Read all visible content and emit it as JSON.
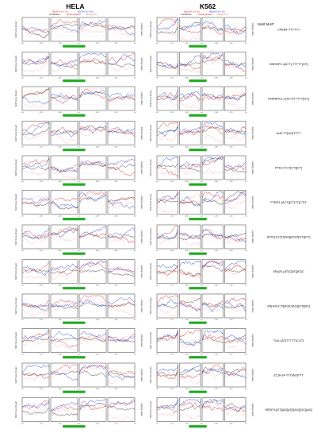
{
  "figure": {
    "columns": [
      "HELA",
      "K562"
    ],
    "legend_row1": [
      "dEpSI>0 (n = 10)",
      "dEpSI<0 (n = 10)"
    ],
    "legend_row2": [
      "Constitutive",
      "Downregulated",
      "Background"
    ],
    "motif_map_header": "Motif MAP:",
    "y_axis_left": "Motif Score (mean)",
    "y_axis_right": "-log10(p-value)",
    "x_ticks": [
      "-50",
      "-125",
      "-250",
      "-50",
      "-250",
      "-125",
      "-50"
    ]
  },
  "colors": {
    "up": "#d62728",
    "down": "#1f3fd6",
    "constitutive": "#111111",
    "background": "#f4a6b0",
    "exon_block": "#22aa22"
  },
  "chart_data": [
    {
      "type": "line",
      "cell": "HELA",
      "motif": "",
      "series": [
        {
          "name": "up"
        },
        {
          "name": "down"
        },
        {
          "name": "constitutive"
        },
        {
          "name": "background"
        }
      ]
    },
    {
      "type": "line",
      "cell": "K562",
      "motif": "CPEB4-TTTTTT",
      "series": [
        {
          "name": "up"
        },
        {
          "name": "down"
        },
        {
          "name": "constitutive"
        },
        {
          "name": "background"
        }
      ]
    },
    {
      "type": "line",
      "cell": "HELA",
      "motif": "",
      "series": [
        {
          "name": "up"
        },
        {
          "name": "down"
        },
        {
          "name": "constitutive"
        },
        {
          "name": "background"
        }
      ]
    },
    {
      "type": "line",
      "cell": "K562",
      "motif": "HNRNPC-[ACT]-TTTTT[GT]",
      "series": [
        {
          "name": "up"
        },
        {
          "name": "down"
        },
        {
          "name": "constitutive"
        },
        {
          "name": "background"
        }
      ]
    },
    {
      "type": "line",
      "cell": "HELA",
      "motif": "",
      "series": [
        {
          "name": "up"
        },
        {
          "name": "down"
        },
        {
          "name": "constitutive"
        },
        {
          "name": "background"
        }
      ]
    },
    {
      "type": "line",
      "cell": "K562",
      "motif": "HNRNPCL1-[ACT]TTTTT[GT]",
      "series": [
        {
          "name": "up"
        },
        {
          "name": "down"
        },
        {
          "name": "constitutive"
        },
        {
          "name": "background"
        }
      ]
    },
    {
      "type": "line",
      "cell": "HELA",
      "motif": "",
      "series": [
        {
          "name": "up"
        },
        {
          "name": "down"
        },
        {
          "name": "constitutive"
        },
        {
          "name": "background"
        }
      ]
    },
    {
      "type": "line",
      "cell": "K562",
      "motif": "HuR-TT[AG]TTTT",
      "series": [
        {
          "name": "up"
        },
        {
          "name": "down"
        },
        {
          "name": "constitutive"
        },
        {
          "name": "background"
        }
      ]
    },
    {
      "type": "line",
      "cell": "HELA",
      "motif": "",
      "series": [
        {
          "name": "up"
        },
        {
          "name": "down"
        },
        {
          "name": "constitutive"
        },
        {
          "name": "background"
        }
      ]
    },
    {
      "type": "line",
      "cell": "K562",
      "motif": "PTB-CTCT[CT][CT]",
      "series": [
        {
          "name": "up"
        },
        {
          "name": "down"
        },
        {
          "name": "constitutive"
        },
        {
          "name": "background"
        }
      ]
    },
    {
      "type": "line",
      "cell": "HELA",
      "motif": "",
      "series": [
        {
          "name": "up"
        },
        {
          "name": "down"
        },
        {
          "name": "constitutive"
        },
        {
          "name": "background"
        }
      ]
    },
    {
      "type": "line",
      "cell": "K562",
      "motif": "PTBP1-[ACT][CT]TT[CT]T",
      "series": [
        {
          "name": "up"
        },
        {
          "name": "down"
        },
        {
          "name": "constitutive"
        },
        {
          "name": "background"
        }
      ]
    },
    {
      "type": "line",
      "cell": "HELA",
      "motif": "",
      "series": [
        {
          "name": "up"
        },
        {
          "name": "down"
        },
        {
          "name": "constitutive"
        },
        {
          "name": "background"
        }
      ]
    },
    {
      "type": "line",
      "cell": "K562",
      "motif": "SFPQ-[GT]T[AG][AG]T[GT][GT]",
      "series": [
        {
          "name": "up"
        },
        {
          "name": "down"
        },
        {
          "name": "constitutive"
        },
        {
          "name": "background"
        }
      ]
    },
    {
      "type": "line",
      "cell": "HELA",
      "motif": "",
      "series": [
        {
          "name": "up"
        },
        {
          "name": "down"
        },
        {
          "name": "constitutive"
        },
        {
          "name": "background"
        }
      ]
    },
    {
      "type": "line",
      "cell": "K562",
      "motif": "SRp20-[AT]C[AT][AT]C",
      "series": [
        {
          "name": "up"
        },
        {
          "name": "down"
        },
        {
          "name": "constitutive"
        },
        {
          "name": "background"
        }
      ]
    },
    {
      "type": "line",
      "cell": "HELA",
      "motif": "",
      "series": [
        {
          "name": "up"
        },
        {
          "name": "down"
        },
        {
          "name": "constitutive"
        },
        {
          "name": "background"
        }
      ]
    },
    {
      "type": "line",
      "cell": "K562",
      "motif": "SRp40-[CT][AG]C[AG][GT][AC]",
      "series": [
        {
          "name": "up"
        },
        {
          "name": "down"
        },
        {
          "name": "constitutive"
        },
        {
          "name": "background"
        }
      ]
    },
    {
      "type": "line",
      "cell": "HELA",
      "motif": "",
      "series": [
        {
          "name": "up"
        },
        {
          "name": "down"
        },
        {
          "name": "constitutive"
        },
        {
          "name": "background"
        }
      ]
    },
    {
      "type": "line",
      "cell": "K562",
      "motif": "TIA1-[AT]TTTTT[CGT]",
      "series": [
        {
          "name": "up"
        },
        {
          "name": "down"
        },
        {
          "name": "constitutive"
        },
        {
          "name": "background"
        }
      ]
    },
    {
      "type": "line",
      "cell": "HELA",
      "motif": "",
      "series": [
        {
          "name": "up"
        },
        {
          "name": "down"
        },
        {
          "name": "constitutive"
        },
        {
          "name": "background"
        }
      ]
    },
    {
      "type": "line",
      "cell": "K562",
      "motif": "ZC3H14-TTT[AG]TTT",
      "series": [
        {
          "name": "up"
        },
        {
          "name": "down"
        },
        {
          "name": "constitutive"
        },
        {
          "name": "background"
        }
      ]
    },
    {
      "type": "line",
      "cell": "HELA",
      "motif": "",
      "series": [
        {
          "name": "up"
        },
        {
          "name": "down"
        },
        {
          "name": "constitutive"
        },
        {
          "name": "background"
        }
      ]
    },
    {
      "type": "line",
      "cell": "K562",
      "motif": "SRSF9-[GT][AG][AT][AG][GC][AG]",
      "series": [
        {
          "name": "up"
        },
        {
          "name": "down"
        },
        {
          "name": "constitutive"
        },
        {
          "name": "background"
        }
      ]
    }
  ]
}
